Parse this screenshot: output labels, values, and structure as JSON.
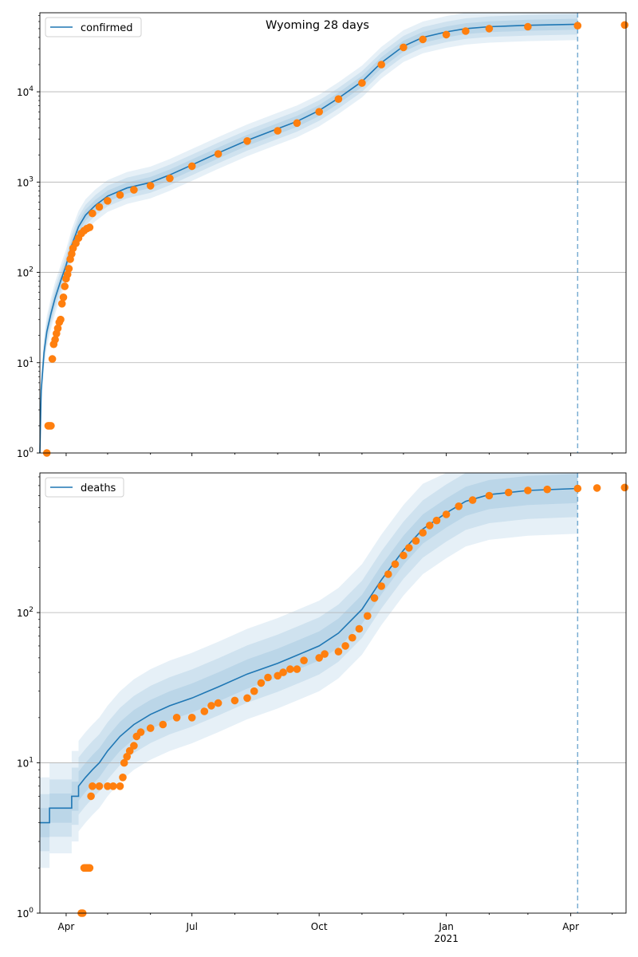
{
  "title": "Wyoming 28 days",
  "x_tick_labels": [
    {
      "date": "2020-04-01",
      "label": "Apr",
      "sub": ""
    },
    {
      "date": "2020-07-01",
      "label": "Jul",
      "sub": ""
    },
    {
      "date": "2020-10-01",
      "label": "Oct",
      "sub": ""
    },
    {
      "date": "2021-01-01",
      "label": "Jan",
      "sub": "2021"
    },
    {
      "date": "2021-04-01",
      "label": "Apr",
      "sub": ""
    }
  ],
  "colors": {
    "model": "#1f77b4",
    "observed": "#ff7f0e",
    "band": "#1f77b4",
    "grid": "#b0b0b0",
    "vline": "#1f77b4"
  },
  "chart_data": [
    {
      "type": "line",
      "name": "confirmed",
      "legend": "confirmed",
      "legend_position": "top-left",
      "yscale": "log",
      "ylim": [
        1,
        75000
      ],
      "xlim": [
        "2020-03-13",
        "2021-05-11"
      ],
      "y_ticks": [
        1,
        10,
        100,
        1000,
        10000
      ],
      "y_tick_labels": [
        {
          "base": "10",
          "exp": "0"
        },
        {
          "base": "10",
          "exp": "1"
        },
        {
          "base": "10",
          "exp": "2"
        },
        {
          "base": "10",
          "exp": "3"
        },
        {
          "base": "10",
          "exp": "4"
        }
      ],
      "grid": "y-major",
      "forecast_start": "2021-04-06",
      "model_line": [
        [
          "2020-03-13",
          1
        ],
        [
          "2020-03-14",
          5
        ],
        [
          "2020-03-16",
          13
        ],
        [
          "2020-03-18",
          22
        ],
        [
          "2020-03-21",
          35
        ],
        [
          "2020-03-24",
          52
        ],
        [
          "2020-03-28",
          80
        ],
        [
          "2020-04-01",
          120
        ],
        [
          "2020-04-05",
          200
        ],
        [
          "2020-04-10",
          320
        ],
        [
          "2020-04-15",
          430
        ],
        [
          "2020-04-22",
          550
        ],
        [
          "2020-05-01",
          700
        ],
        [
          "2020-05-15",
          860
        ],
        [
          "2020-06-01",
          990
        ],
        [
          "2020-06-15",
          1200
        ],
        [
          "2020-07-01",
          1550
        ],
        [
          "2020-07-20",
          2100
        ],
        [
          "2020-08-10",
          2900
        ],
        [
          "2020-09-01",
          3900
        ],
        [
          "2020-09-15",
          4700
        ],
        [
          "2020-10-01",
          6200
        ],
        [
          "2020-10-15",
          8500
        ],
        [
          "2020-11-01",
          13000
        ],
        [
          "2020-11-15",
          21000
        ],
        [
          "2020-12-01",
          32000
        ],
        [
          "2020-12-15",
          40000
        ],
        [
          "2021-01-01",
          46000
        ],
        [
          "2021-01-15",
          50000
        ],
        [
          "2021-02-01",
          52500
        ],
        [
          "2021-03-01",
          54500
        ],
        [
          "2021-04-06",
          56000
        ]
      ],
      "observed": [
        [
          "2020-03-18",
          1
        ],
        [
          "2020-03-19",
          2
        ],
        [
          "2020-03-20",
          2
        ],
        [
          "2020-03-21",
          2
        ],
        [
          "2020-03-22",
          11
        ],
        [
          "2020-03-23",
          16
        ],
        [
          "2020-03-24",
          18
        ],
        [
          "2020-03-25",
          21
        ],
        [
          "2020-03-26",
          24
        ],
        [
          "2020-03-27",
          28
        ],
        [
          "2020-03-28",
          30
        ],
        [
          "2020-03-29",
          45
        ],
        [
          "2020-03-30",
          53
        ],
        [
          "2020-03-31",
          70
        ],
        [
          "2020-04-01",
          85
        ],
        [
          "2020-04-02",
          95
        ],
        [
          "2020-04-03",
          110
        ],
        [
          "2020-04-04",
          140
        ],
        [
          "2020-04-05",
          160
        ],
        [
          "2020-04-06",
          185
        ],
        [
          "2020-04-08",
          210
        ],
        [
          "2020-04-10",
          240
        ],
        [
          "2020-04-12",
          270
        ],
        [
          "2020-04-14",
          290
        ],
        [
          "2020-04-16",
          305
        ],
        [
          "2020-04-18",
          315
        ],
        [
          "2020-04-20",
          450
        ],
        [
          "2020-04-25",
          530
        ],
        [
          "2020-05-01",
          620
        ],
        [
          "2020-05-10",
          720
        ],
        [
          "2020-05-20",
          820
        ],
        [
          "2020-06-01",
          910
        ],
        [
          "2020-06-15",
          1100
        ],
        [
          "2020-07-01",
          1500
        ],
        [
          "2020-07-20",
          2050
        ],
        [
          "2020-08-10",
          2850
        ],
        [
          "2020-09-01",
          3700
        ],
        [
          "2020-09-15",
          4500
        ],
        [
          "2020-10-01",
          6000
        ],
        [
          "2020-10-15",
          8300
        ],
        [
          "2020-11-01",
          12500
        ],
        [
          "2020-11-15",
          20000
        ],
        [
          "2020-12-01",
          31000
        ],
        [
          "2020-12-15",
          38000
        ],
        [
          "2021-01-01",
          43000
        ],
        [
          "2021-01-15",
          47000
        ],
        [
          "2021-02-01",
          50000
        ],
        [
          "2021-03-01",
          52500
        ],
        [
          "2021-04-06",
          54000
        ],
        [
          "2021-05-10",
          55000
        ]
      ]
    },
    {
      "type": "line",
      "name": "deaths",
      "legend": "deaths",
      "legend_position": "top-left",
      "yscale": "log",
      "ylim": [
        1,
        850
      ],
      "xlim": [
        "2020-03-13",
        "2021-05-11"
      ],
      "y_ticks": [
        1,
        10,
        100
      ],
      "y_tick_labels": [
        {
          "base": "10",
          "exp": "0"
        },
        {
          "base": "10",
          "exp": "1"
        },
        {
          "base": "10",
          "exp": "2"
        }
      ],
      "grid": "y-major",
      "forecast_start": "2021-04-06",
      "model_line": [
        [
          "2020-03-13",
          4
        ],
        [
          "2020-03-20",
          4
        ],
        [
          "2020-03-20",
          5
        ],
        [
          "2020-04-05",
          5
        ],
        [
          "2020-04-05",
          6
        ],
        [
          "2020-04-10",
          6
        ],
        [
          "2020-04-10",
          7
        ],
        [
          "2020-04-15",
          8
        ],
        [
          "2020-04-20",
          9
        ],
        [
          "2020-04-25",
          10
        ],
        [
          "2020-05-01",
          12
        ],
        [
          "2020-05-10",
          15
        ],
        [
          "2020-05-20",
          18
        ],
        [
          "2020-06-01",
          21
        ],
        [
          "2020-06-15",
          24
        ],
        [
          "2020-07-01",
          27
        ],
        [
          "2020-07-20",
          32
        ],
        [
          "2020-08-10",
          39
        ],
        [
          "2020-09-01",
          46
        ],
        [
          "2020-09-15",
          52
        ],
        [
          "2020-10-01",
          60
        ],
        [
          "2020-10-15",
          73
        ],
        [
          "2020-11-01",
          105
        ],
        [
          "2020-11-15",
          165
        ],
        [
          "2020-12-01",
          260
        ],
        [
          "2020-12-15",
          360
        ],
        [
          "2021-01-01",
          460
        ],
        [
          "2021-01-15",
          550
        ],
        [
          "2021-02-01",
          610
        ],
        [
          "2021-03-01",
          650
        ],
        [
          "2021-04-06",
          670
        ]
      ],
      "observed": [
        [
          "2020-04-12",
          1
        ],
        [
          "2020-04-13",
          1
        ],
        [
          "2020-04-14",
          2
        ],
        [
          "2020-04-15",
          2
        ],
        [
          "2020-04-16",
          2
        ],
        [
          "2020-04-17",
          2
        ],
        [
          "2020-04-18",
          2
        ],
        [
          "2020-04-19",
          6
        ],
        [
          "2020-04-20",
          7
        ],
        [
          "2020-04-25",
          7
        ],
        [
          "2020-05-01",
          7
        ],
        [
          "2020-05-05",
          7
        ],
        [
          "2020-05-10",
          7
        ],
        [
          "2020-05-12",
          8
        ],
        [
          "2020-05-13",
          10
        ],
        [
          "2020-05-15",
          11
        ],
        [
          "2020-05-17",
          12
        ],
        [
          "2020-05-20",
          13
        ],
        [
          "2020-05-22",
          15
        ],
        [
          "2020-05-25",
          16
        ],
        [
          "2020-06-01",
          17
        ],
        [
          "2020-06-10",
          18
        ],
        [
          "2020-06-20",
          20
        ],
        [
          "2020-07-01",
          20
        ],
        [
          "2020-07-10",
          22
        ],
        [
          "2020-07-15",
          24
        ],
        [
          "2020-07-20",
          25
        ],
        [
          "2020-08-01",
          26
        ],
        [
          "2020-08-10",
          27
        ],
        [
          "2020-08-15",
          30
        ],
        [
          "2020-08-20",
          34
        ],
        [
          "2020-08-25",
          37
        ],
        [
          "2020-09-01",
          38
        ],
        [
          "2020-09-05",
          40
        ],
        [
          "2020-09-10",
          42
        ],
        [
          "2020-09-15",
          42
        ],
        [
          "2020-09-20",
          48
        ],
        [
          "2020-10-01",
          50
        ],
        [
          "2020-10-05",
          53
        ],
        [
          "2020-10-15",
          55
        ],
        [
          "2020-10-20",
          60
        ],
        [
          "2020-10-25",
          68
        ],
        [
          "2020-10-30",
          78
        ],
        [
          "2020-11-05",
          95
        ],
        [
          "2020-11-10",
          125
        ],
        [
          "2020-11-15",
          150
        ],
        [
          "2020-11-20",
          180
        ],
        [
          "2020-11-25",
          210
        ],
        [
          "2020-12-01",
          240
        ],
        [
          "2020-12-05",
          270
        ],
        [
          "2020-12-10",
          300
        ],
        [
          "2020-12-15",
          340
        ],
        [
          "2020-12-20",
          380
        ],
        [
          "2020-12-25",
          410
        ],
        [
          "2021-01-01",
          450
        ],
        [
          "2021-01-10",
          510
        ],
        [
          "2021-01-20",
          560
        ],
        [
          "2021-02-01",
          600
        ],
        [
          "2021-02-15",
          630
        ],
        [
          "2021-03-01",
          650
        ],
        [
          "2021-03-15",
          660
        ],
        [
          "2021-04-06",
          670
        ],
        [
          "2021-04-20",
          675
        ],
        [
          "2021-05-10",
          680
        ]
      ]
    }
  ]
}
